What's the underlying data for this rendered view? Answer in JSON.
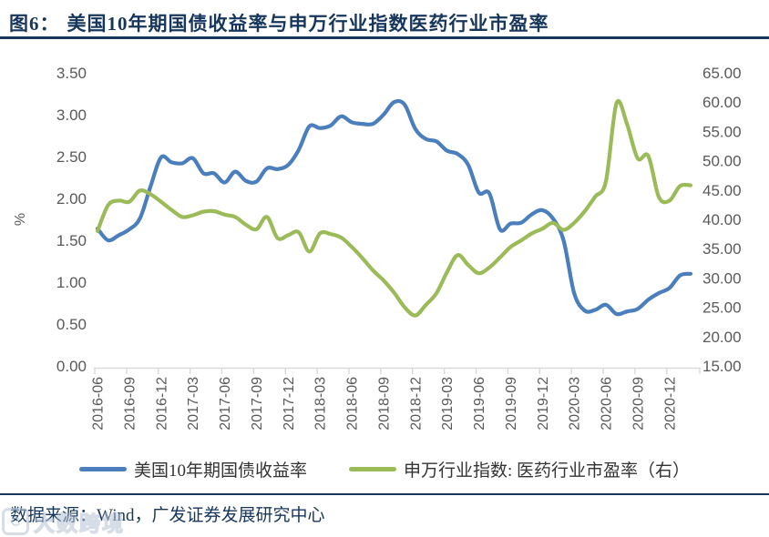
{
  "header": {
    "figure_label": "图6：",
    "title": "美国10年期国债收益率与申万行业指数医药行业市盈率",
    "accent_color": "#16365c"
  },
  "chart_data": {
    "type": "line",
    "smooth": true,
    "grid": false,
    "legend_position": "bottom",
    "axis_color": "#d9d9d9",
    "tick_label_color": "#595959",
    "x": [
      "2016-06",
      "2016-07",
      "2016-08",
      "2016-09",
      "2016-10",
      "2016-11",
      "2016-12",
      "2017-01",
      "2017-02",
      "2017-03",
      "2017-04",
      "2017-05",
      "2017-06",
      "2017-07",
      "2017-08",
      "2017-09",
      "2017-10",
      "2017-11",
      "2017-12",
      "2018-01",
      "2018-02",
      "2018-03",
      "2018-04",
      "2018-05",
      "2018-06",
      "2018-07",
      "2018-08",
      "2018-09",
      "2018-10",
      "2018-11",
      "2018-12",
      "2019-01",
      "2019-02",
      "2019-03",
      "2019-04",
      "2019-05",
      "2019-06",
      "2019-07",
      "2019-08",
      "2019-09",
      "2019-10",
      "2019-11",
      "2019-12",
      "2020-01",
      "2020-02",
      "2020-03",
      "2020-04",
      "2020-05",
      "2020-06",
      "2020-07",
      "2020-08",
      "2020-09",
      "2020-10",
      "2020-11",
      "2020-12",
      "2021-01",
      "2021-02"
    ],
    "x_tick_labels": [
      "2016-06",
      "2016-09",
      "2016-12",
      "2017-03",
      "2017-06",
      "2017-09",
      "2017-12",
      "2018-03",
      "2018-06",
      "2018-09",
      "2018-12",
      "2019-03",
      "2019-06",
      "2019-09",
      "2019-12",
      "2020-03",
      "2020-06",
      "2020-09",
      "2020-12"
    ],
    "left_axis": {
      "label": "%",
      "min": 0,
      "max": 3.5,
      "ticks": [
        "3.50",
        "3.00",
        "2.50",
        "2.00",
        "1.50",
        "1.00",
        "0.50",
        "0.00"
      ]
    },
    "right_axis": {
      "min": 15,
      "max": 65,
      "ticks": [
        "65.00",
        "60.00",
        "55.00",
        "50.00",
        "45.00",
        "40.00",
        "35.00",
        "30.00",
        "25.00",
        "20.00",
        "15.00"
      ]
    },
    "series": [
      {
        "name": "美国10年期国债收益率",
        "axis": "left",
        "color": "#4a7ebc",
        "values": [
          1.64,
          1.5,
          1.56,
          1.63,
          1.76,
          2.14,
          2.49,
          2.43,
          2.42,
          2.48,
          2.3,
          2.3,
          2.19,
          2.32,
          2.21,
          2.2,
          2.36,
          2.35,
          2.4,
          2.58,
          2.86,
          2.84,
          2.87,
          2.98,
          2.91,
          2.89,
          2.89,
          3.0,
          3.15,
          3.12,
          2.83,
          2.71,
          2.68,
          2.57,
          2.53,
          2.4,
          2.07,
          2.06,
          1.63,
          1.7,
          1.71,
          1.81,
          1.86,
          1.76,
          1.5,
          0.87,
          0.66,
          0.67,
          0.73,
          0.62,
          0.65,
          0.68,
          0.79,
          0.87,
          0.93,
          1.08,
          1.1
        ]
      },
      {
        "name": "申万行业指数: 医药行业市盈率（右）",
        "axis": "right",
        "color": "#9bbb59",
        "values": [
          38.0,
          42.4,
          43.2,
          43.0,
          44.9,
          44.3,
          43.0,
          41.6,
          40.4,
          40.7,
          41.3,
          41.4,
          40.8,
          40.4,
          39.1,
          38.3,
          40.4,
          36.8,
          37.3,
          37.8,
          34.5,
          37.6,
          37.5,
          36.9,
          35.3,
          33.4,
          31.3,
          29.6,
          27.5,
          25.0,
          23.6,
          25.4,
          27.4,
          31.0,
          33.9,
          32.2,
          30.8,
          31.8,
          33.5,
          35.3,
          36.4,
          37.6,
          38.4,
          39.4,
          38.2,
          39.4,
          41.4,
          43.9,
          46.5,
          59.8,
          56.2,
          50.4,
          50.8,
          43.8,
          43.2,
          45.7,
          45.8
        ]
      }
    ]
  },
  "footer": {
    "source_label": "数据来源：",
    "source_text": "Wind，广发证券发展研究中心"
  },
  "watermark": {
    "logo_text": "C",
    "text": "大数跨境"
  }
}
